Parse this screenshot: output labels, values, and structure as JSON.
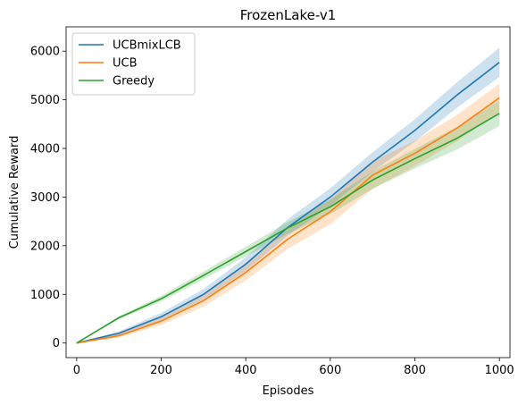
{
  "chart_data": {
    "type": "line",
    "title": "FrozenLake-v1",
    "xlabel": "Episodes",
    "ylabel": "Cumulative Reward",
    "xlim": [
      -25,
      1025
    ],
    "ylim": [
      -300,
      6500
    ],
    "xticks": [
      0,
      200,
      400,
      600,
      800,
      1000
    ],
    "yticks": [
      0,
      1000,
      2000,
      3000,
      4000,
      5000,
      6000
    ],
    "grid": false,
    "legend_position": "upper-left",
    "series": [
      {
        "name": "UCBmixLCB",
        "color": "#1f77b4",
        "x": [
          0,
          100,
          200,
          300,
          400,
          500,
          600,
          700,
          800,
          900,
          1000
        ],
        "y": [
          0,
          200,
          540,
          1000,
          1620,
          2380,
          3000,
          3720,
          4370,
          5100,
          5770
        ],
        "band": [
          0,
          40,
          80,
          110,
          140,
          170,
          180,
          200,
          230,
          260,
          300
        ]
      },
      {
        "name": "UCB",
        "color": "#ff7f0e",
        "x": [
          0,
          100,
          200,
          300,
          400,
          500,
          600,
          700,
          800,
          900,
          1000
        ],
        "y": [
          0,
          150,
          450,
          870,
          1450,
          2140,
          2700,
          3450,
          3900,
          4420,
          5040
        ],
        "band": [
          0,
          40,
          80,
          120,
          160,
          200,
          260,
          280,
          260,
          270,
          290
        ]
      },
      {
        "name": "Greedy",
        "color": "#2ca02c",
        "x": [
          0,
          100,
          200,
          300,
          400,
          500,
          600,
          700,
          800,
          900,
          1000
        ],
        "y": [
          0,
          520,
          910,
          1390,
          1880,
          2370,
          2800,
          3350,
          3790,
          4210,
          4720
        ],
        "band": [
          0,
          30,
          60,
          80,
          100,
          120,
          150,
          180,
          200,
          230,
          260
        ]
      }
    ]
  }
}
